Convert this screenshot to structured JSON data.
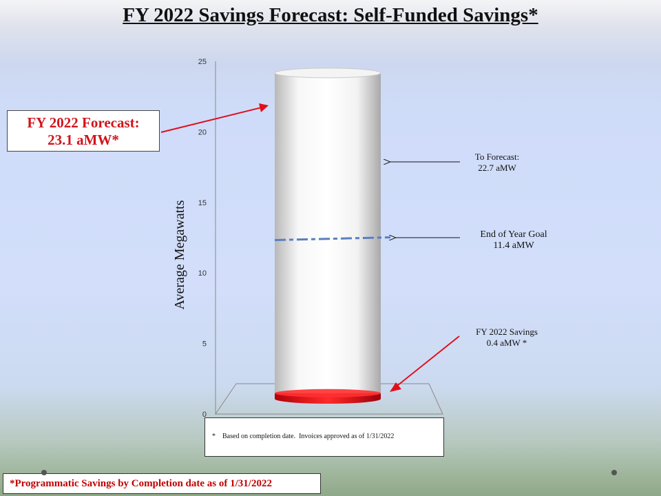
{
  "title": "FY 2022 Savings Forecast: Self-Funded Savings*",
  "callout": {
    "line1": "FY 2022 Forecast:",
    "line2": "23.1 aMW*"
  },
  "annotations": {
    "to_forecast_line1": "To Forecast:",
    "to_forecast_line2": "22.7 aMW",
    "goal_line1": "End of Year Goal",
    "goal_line2": "11.4 aMW",
    "savings_line1": "FY 2022 Savings",
    "savings_line2": "0.4 aMW *"
  },
  "note": "*    Based on completion date.  Invoices approved as of 1/31/2022",
  "footer": "*Programmatic Savings by Completion date as of 1/31/2022",
  "colors": {
    "accent_red": "#d2131a",
    "goal_line": "#5a7fbf",
    "cylinder_body": "#ffffff"
  },
  "chart_data": {
    "type": "bar",
    "style": "3d-cylinder-stacked",
    "ylabel": "Average Megawatts",
    "ylim": [
      0,
      25
    ],
    "yticks": [
      "0",
      "5",
      "10",
      "15",
      "20",
      "25"
    ],
    "series": [
      {
        "name": "FY 2022 Savings",
        "values": [
          0.4
        ]
      },
      {
        "name": "To Forecast",
        "values": [
          22.7
        ]
      }
    ],
    "total": 23.1,
    "goal": 11.4
  }
}
